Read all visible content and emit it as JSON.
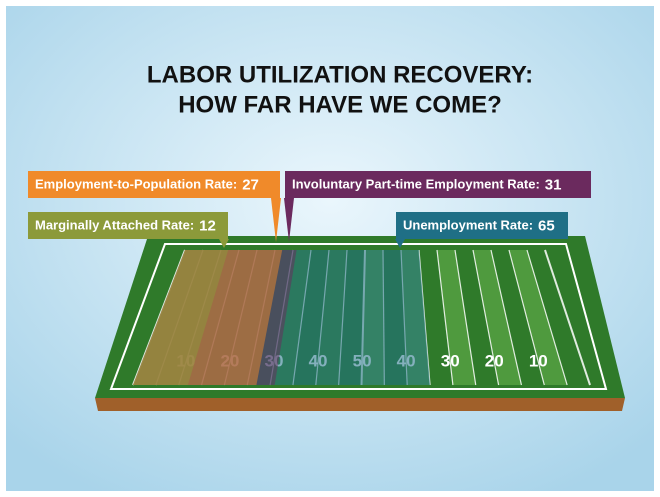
{
  "title": [
    "LABOR UTILIZATION RECOVERY:",
    "HOW FAR HAVE WE COME?"
  ],
  "callouts": [
    {
      "label": "Employment-to-Population Rate:",
      "value": 27,
      "color": "#f08a2a"
    },
    {
      "label": "Involuntary Part-time Employment Rate:",
      "value": 31,
      "color": "#6b2a5e"
    },
    {
      "label": "Marginally Attached Rate:",
      "value": 12,
      "color": "#8c9a3a"
    },
    {
      "label": "Unemployment Rate:",
      "value": 65,
      "color": "#1f6f86"
    }
  ],
  "yard_numbers": [
    10,
    20,
    30,
    40,
    50,
    40,
    30,
    20,
    10
  ]
}
